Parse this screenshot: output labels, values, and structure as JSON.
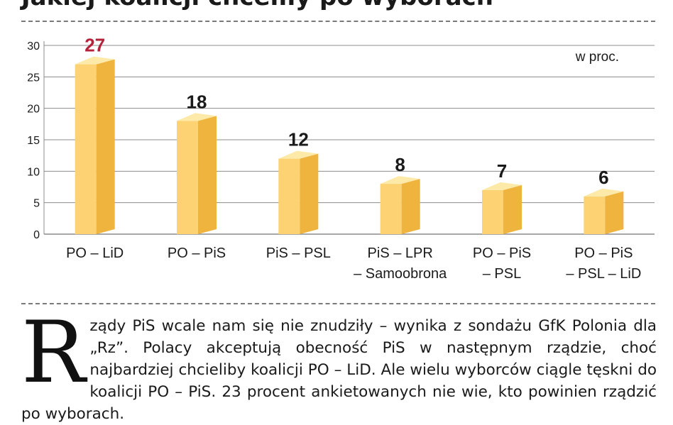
{
  "header": {
    "title": "Jakiej koalicji chcemy po wyborach"
  },
  "chart_data": {
    "type": "bar",
    "title": "Jakiej koalicji chcemy po wyborach",
    "unit_label": "w proc.",
    "categories": [
      [
        "PO – LiD"
      ],
      [
        "PO – PiS"
      ],
      [
        "PiS – PSL"
      ],
      [
        "PiS – LPR",
        "– Samoobrona"
      ],
      [
        "PO – PiS",
        "– PSL"
      ],
      [
        "PO – PiS",
        "– PSL – LiD"
      ]
    ],
    "values": [
      27,
      18,
      12,
      8,
      7,
      6
    ],
    "ylim": [
      0,
      30
    ],
    "yticks": [
      0,
      5,
      10,
      15,
      20,
      25,
      30
    ],
    "grid": true,
    "colors": {
      "bar_front": "#fcd272",
      "bar_side": "#efb43e",
      "bar_top": "#fde9a8",
      "highlight_label": "#b5203a",
      "label": "#1a1a1a",
      "grid": "#8c8c8c"
    }
  },
  "article": {
    "dropcap": "R",
    "text": "ządy PiS wcale nam się nie znudziły – wynika z sondażu GfK Polonia dla „Rz”. Polacy akceptują obecność PiS w następnym rządzie, choć najbardziej chcieliby koalicji PO – LiD. Ale wielu wyborców ciągle tęskni do koalicji PO – PiS. 23 procent ankietowanych nie wie, kto powinien rządzić po wyborach."
  }
}
